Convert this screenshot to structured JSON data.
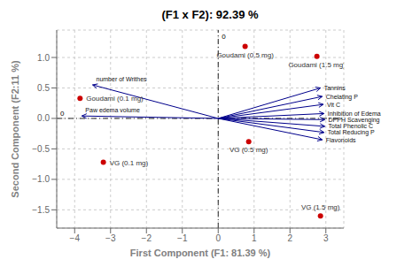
{
  "chart_data": {
    "type": "biplot",
    "title": "(F1 x F2): 92.39 %",
    "x_label": "First Component (F1: 81.39 %)",
    "y_label": "Second Component (F2:11 %)",
    "xlim": [
      -4.5,
      3.5
    ],
    "ylim": [
      -1.8,
      1.45
    ],
    "xticks": [
      {
        "value": -4,
        "label": "−4"
      },
      {
        "value": -3,
        "label": "−3"
      },
      {
        "value": -2,
        "label": "−2"
      },
      {
        "value": -1,
        "label": "−1"
      },
      0,
      1,
      2,
      3
    ],
    "yticks": [
      {
        "value": -1.5,
        "label": "−1.5"
      },
      {
        "value": -1.0,
        "label": "−1.0"
      },
      {
        "value": -0.5,
        "label": "−0.5"
      },
      {
        "value": 0.0,
        "label": "0.0"
      },
      0.5,
      {
        "value": 1.0,
        "label": "1.0"
      }
    ],
    "grid": true,
    "points": {
      "labels": [
        "Goudami (0.1 mg)",
        "Goudami (0.5 mg)",
        "Goudami (1.5 mg)",
        "VG (0.1 mg)",
        "VG (0.5 mg)",
        "VG (1.5 mg)"
      ],
      "x": [
        -3.85,
        0.75,
        2.75,
        -3.2,
        0.85,
        2.85
      ],
      "y": [
        0.33,
        1.18,
        1.02,
        -0.72,
        -0.38,
        -1.6
      ],
      "color": "#cc0000"
    },
    "arrows": {
      "labels": [
        "Tannins",
        "Chelating P",
        "Vit C",
        "Inhibition of Edema",
        "DPPH Scavenging",
        "Total Phenolic C",
        "Total Reducing P",
        "Flavonoids",
        "number of Writhes",
        "Paw edema volume"
      ],
      "x": [
        2.85,
        2.9,
        2.93,
        2.95,
        2.97,
        2.97,
        2.95,
        2.9,
        -3.5,
        -3.8
      ],
      "y": [
        0.5,
        0.36,
        0.23,
        0.08,
        -0.02,
        -0.13,
        -0.23,
        -0.35,
        0.55,
        0.04
      ],
      "color": "#00008B"
    },
    "reference_lines": [
      {
        "axis": "x",
        "value": 0,
        "label": "0"
      },
      {
        "axis": "y",
        "value": 0,
        "label": "0"
      }
    ]
  }
}
